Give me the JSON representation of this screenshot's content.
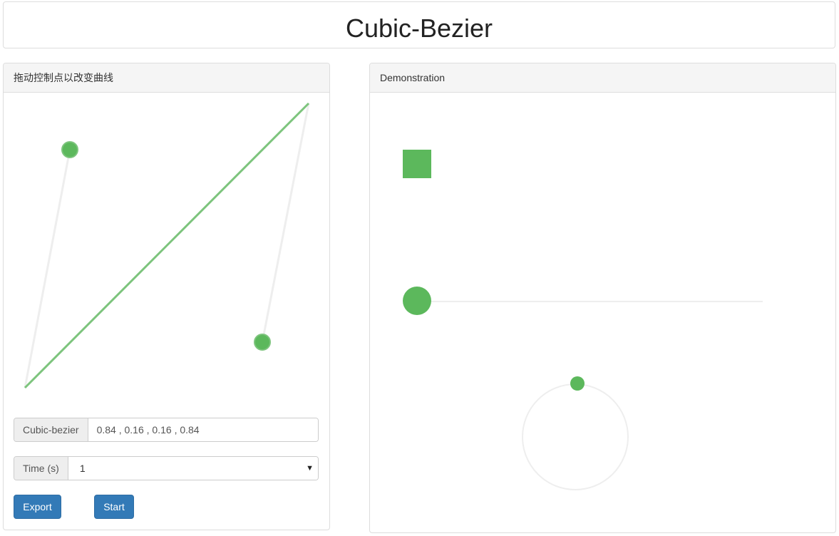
{
  "header": {
    "title": "Cubic-Bezier"
  },
  "editor": {
    "heading": "拖动控制点以改变曲线",
    "bezier": {
      "label": "Cubic-bezier",
      "value": "0.84 , 0.16 , 0.16 , 0.84",
      "points": [
        0.84,
        0.16,
        0.16,
        0.84
      ]
    },
    "time": {
      "label": "Time (s)",
      "value": "1",
      "arrow": "▼"
    },
    "buttons": {
      "export_label": "Export",
      "start_label": "Start"
    }
  },
  "demo": {
    "heading": "Demonstration"
  },
  "colors": {
    "accent": "#5cb85c",
    "curve": "#7dc47d",
    "guide": "#eeeeee",
    "primary_button": "#337ab7"
  }
}
